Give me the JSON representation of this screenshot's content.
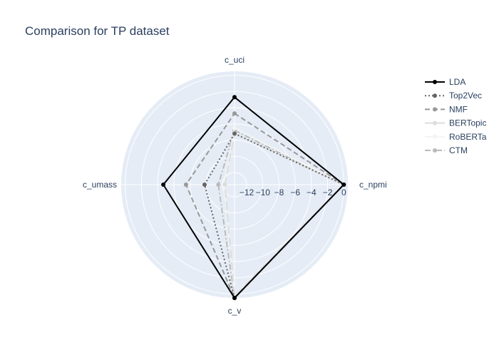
{
  "chart_data": {
    "type": "radar",
    "title": "Comparison for TP dataset",
    "axes": [
      "c_uci",
      "c_npmi",
      "c_v",
      "c_umass"
    ],
    "radial_range": [
      -13.5,
      0.5
    ],
    "radial_ticks": [
      -12,
      -10,
      -8,
      -6,
      -4,
      -2,
      0
    ],
    "radial_tick_labels": [
      "−12",
      "−10",
      "−8",
      "−6",
      "−4",
      "−2",
      "0"
    ],
    "grid": true,
    "legend_position": "top-right",
    "series": [
      {
        "name": "LDA",
        "values": [
          -2.7,
          0,
          0.5,
          -4.7
        ],
        "color": "#000000",
        "dash": "solid",
        "width": 2
      },
      {
        "name": "Top2Vec",
        "values": [
          -7.2,
          0,
          0.5,
          -9.8
        ],
        "color": "#666666",
        "dash": "dot",
        "width": 2
      },
      {
        "name": "NMF",
        "values": [
          -4.7,
          0,
          0.5,
          -7.5
        ],
        "color": "#999999",
        "dash": "dash",
        "width": 2
      },
      {
        "name": "BERTopic",
        "values": [
          -7.2,
          0,
          0.3,
          -12.3
        ],
        "color": "#dddddd",
        "dash": "longdash",
        "width": 2
      },
      {
        "name": "RoBERTa",
        "values": [
          -6.5,
          0,
          0.3,
          -12.2
        ],
        "color": "#f4f4f4",
        "dash": "solid",
        "width": 2
      },
      {
        "name": "CTM",
        "values": [
          -6.8,
          0,
          0.5,
          -11.5
        ],
        "color": "#bbbbbb",
        "dash": "dashdot",
        "width": 2
      }
    ]
  }
}
